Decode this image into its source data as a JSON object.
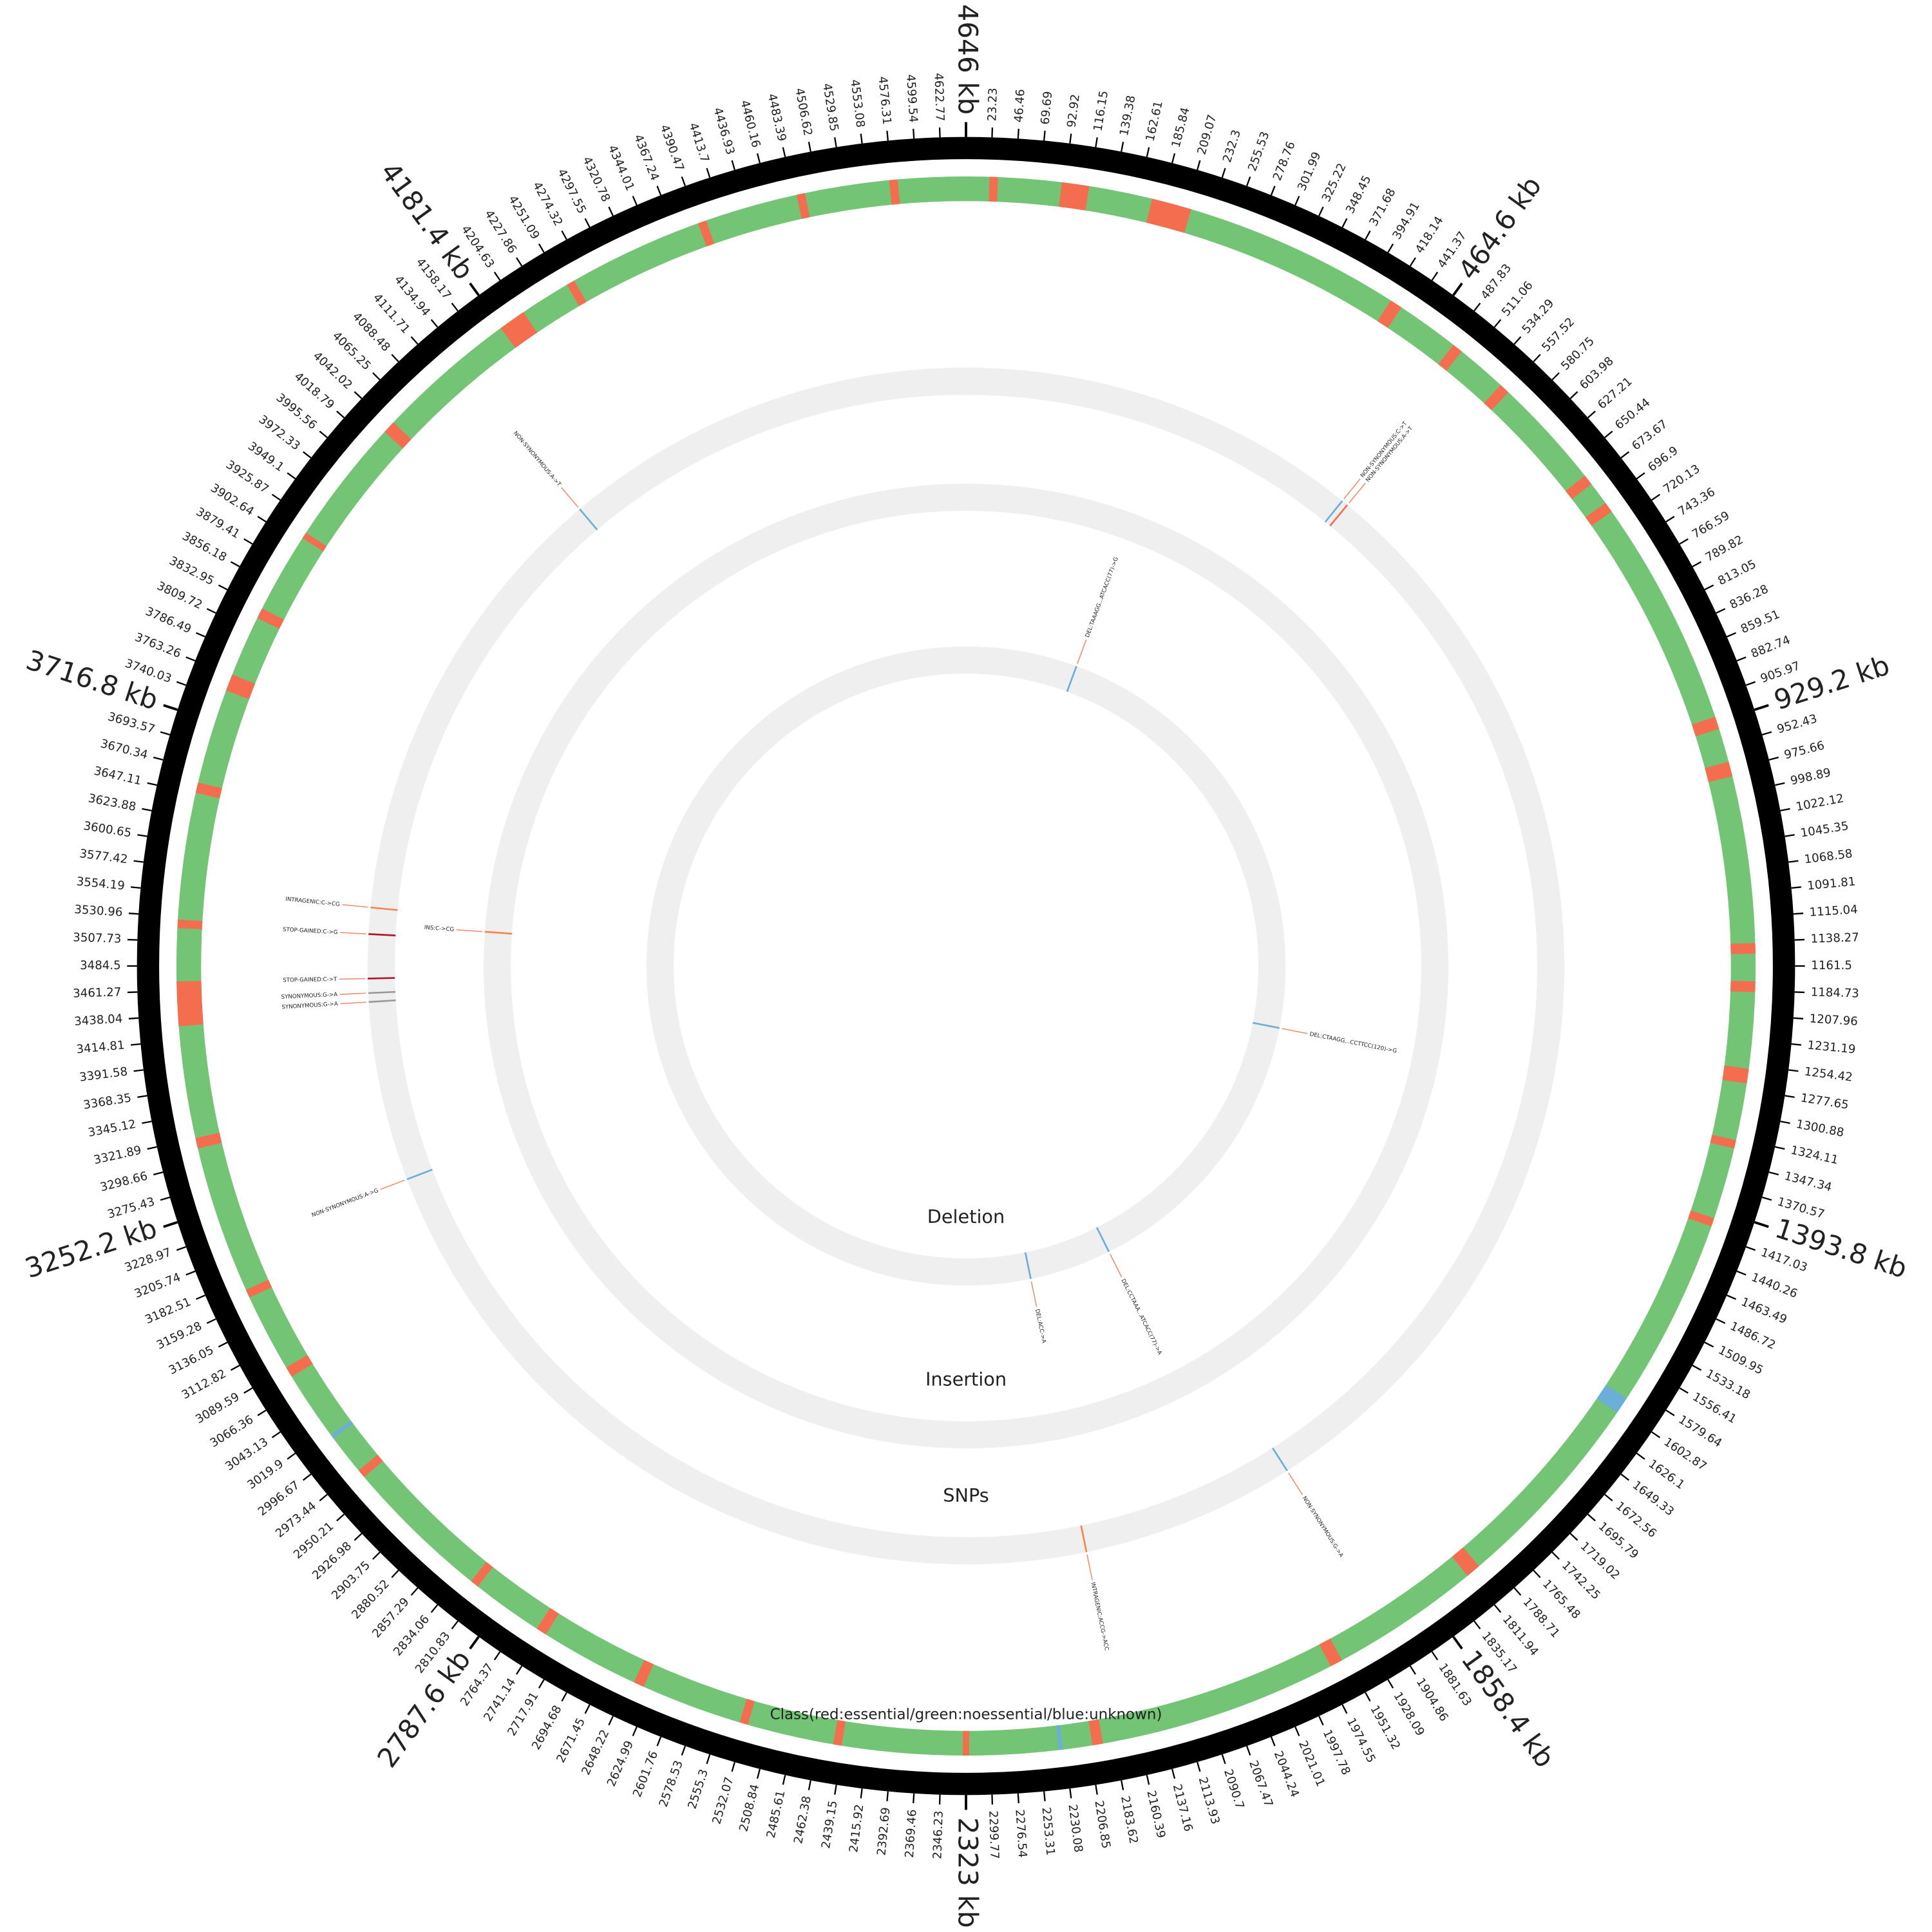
{
  "chart_data": {
    "type": "circos",
    "xlim": [
      0,
      4646
    ],
    "xticks": [
      23.23,
      46.46,
      69.69,
      92.92,
      116.15,
      139.38,
      162.61,
      185.84,
      209.07,
      232.3,
      255.53,
      278.76,
      301.99,
      325.22,
      348.45,
      371.68,
      394.91,
      418.14,
      441.37,
      {
        "value": 464.6,
        "label": "464.6 kb"
      },
      487.83,
      511.06,
      534.29,
      557.52,
      580.75,
      603.98,
      627.21,
      650.44,
      673.67,
      696.9,
      720.13,
      743.36,
      766.59,
      789.82,
      813.05,
      836.28,
      859.51,
      882.74,
      905.97,
      {
        "value": 929.2,
        "label": "929.2 kb"
      },
      952.43,
      975.66,
      998.89,
      1022.12,
      1045.35,
      1068.58,
      1091.81,
      1115.04,
      1138.27,
      1161.5,
      1184.73,
      1207.96,
      1231.19,
      1254.42,
      1277.65,
      1300.88,
      1324.11,
      1347.34,
      1370.57,
      {
        "value": 1393.8,
        "label": "1393.8 kb"
      },
      1417.03,
      1440.26,
      1463.49,
      1486.72,
      1509.95,
      1533.18,
      1556.41,
      1579.64,
      1602.87,
      1626.1,
      1649.33,
      1672.56,
      1695.79,
      1719.02,
      1742.25,
      1765.48,
      1788.71,
      1811.94,
      1835.17,
      {
        "value": 1858.4,
        "label": "1858.4 kb"
      },
      1881.63,
      1904.86,
      1928.09,
      1951.32,
      1974.55,
      1997.78,
      2021.01,
      2044.24,
      2067.47,
      2090.7,
      2113.93,
      2137.16,
      2160.39,
      2183.62,
      2206.85,
      2230.08,
      2253.31,
      2276.54,
      2299.77,
      {
        "value": 2323,
        "label": "2323 kb"
      },
      2346.23,
      2369.46,
      2392.69,
      2415.92,
      2439.15,
      2462.38,
      2485.61,
      2508.84,
      2532.07,
      2555.3,
      2578.53,
      2601.76,
      2624.99,
      2648.22,
      2671.45,
      2694.68,
      2717.91,
      2741.14,
      2764.37,
      {
        "value": 2787.6,
        "label": "2787.6 kb"
      },
      2810.83,
      2834.06,
      2857.29,
      2880.52,
      2903.75,
      2926.98,
      2950.21,
      2973.44,
      2996.67,
      3019.9,
      3043.13,
      3066.36,
      3089.59,
      3112.82,
      3136.05,
      3159.28,
      3182.51,
      3205.74,
      3228.97,
      {
        "value": 3252.2,
        "label": "3252.2 kb"
      },
      3275.43,
      3298.66,
      3321.89,
      3345.12,
      3368.35,
      3391.58,
      3414.81,
      3438.04,
      3461.27,
      3484.5,
      3507.73,
      3530.96,
      3554.19,
      3577.42,
      3600.65,
      3623.88,
      3647.11,
      3670.34,
      3693.57,
      {
        "value": 3716.8,
        "label": "3716.8 kb"
      },
      3740.03,
      3763.26,
      3786.49,
      3809.72,
      3832.95,
      3856.18,
      3879.41,
      3902.64,
      3925.87,
      3949.1,
      3972.33,
      3995.56,
      4018.79,
      4042.02,
      4065.25,
      4088.48,
      4111.71,
      4134.94,
      4158.17,
      {
        "value": 4181.4,
        "label": "4181.4 kb"
      },
      4204.63,
      4227.86,
      4251.09,
      4274.32,
      4297.55,
      4320.78,
      4344.01,
      4367.24,
      4390.47,
      4413.7,
      4436.93,
      4460.16,
      4483.39,
      4506.62,
      4529.85,
      4553.08,
      4576.31,
      4599.54,
      4622.77,
      {
        "value": 4646,
        "label": "4646 kb"
      }
    ],
    "gene_track": {
      "title": "Class(red:essential/green:noessential/blue:unknown)",
      "colors": {
        "noessential": "#74c476",
        "essential": "#f46d4e",
        "unknown": "#6baed6"
      },
      "essential": [
        [
          22,
          30
        ],
        [
          90,
          116
        ],
        [
          176,
          214
        ],
        [
          420,
          432
        ],
        [
          492,
          502
        ],
        [
          550,
          560
        ],
        [
          666,
          676
        ],
        [
          698,
          708
        ],
        [
          924,
          936
        ],
        [
          968,
          982
        ],
        [
          1140,
          1150
        ],
        [
          1176,
          1186
        ],
        [
          1258,
          1272
        ],
        [
          1326,
          1334
        ],
        [
          1402,
          1410
        ],
        [
          1800,
          1814
        ],
        [
          1956,
          1968
        ],
        [
          2194,
          2204
        ],
        [
          2320,
          2326
        ],
        [
          2440,
          2448
        ],
        [
          2530,
          2538
        ],
        [
          2634,
          2644
        ],
        [
          2738,
          2748
        ],
        [
          2816,
          2824
        ],
        [
          2964,
          2972
        ],
        [
          3080,
          3090
        ],
        [
          3164,
          3172
        ],
        [
          3312,
          3322
        ],
        [
          3428,
          3470
        ],
        [
          3520,
          3528
        ],
        [
          3648,
          3658
        ],
        [
          3748,
          3764
        ],
        [
          3822,
          3832
        ],
        [
          3908,
          3914
        ],
        [
          4034,
          4046
        ],
        [
          4180,
          4206
        ],
        [
          4254,
          4262
        ],
        [
          4390,
          4398
        ],
        [
          4486,
          4494
        ],
        [
          4574,
          4582
        ]
      ],
      "unknown": [
        [
          1590,
          1606
        ],
        [
          3010,
          3014
        ],
        [
          2232,
          2236
        ]
      ]
    },
    "tracks": [
      {
        "name": "SNPs",
        "variants": [
          {
            "position": 4127,
            "label": "NON-SYNONYMOUS:A->T",
            "color": "#6baed6"
          },
          {
            "position": 503,
            "label": "NON-SYNONYMOUS:C->T",
            "color": "#6baed6"
          },
          {
            "position": 511,
            "label": "NON-SYNONYMOUS:A->T",
            "color": "#f46d4e"
          },
          {
            "position": 3557,
            "label": "INTRAGENIC:C->CG",
            "color": "#f4874b"
          },
          {
            "position": 3524,
            "label": "STOP-GAINED:C->G",
            "color": "#b2182b"
          },
          {
            "position": 3469,
            "label": "STOP-GAINED:C->T",
            "color": "#b2182b"
          },
          {
            "position": 3451,
            "label": "SYNONYMOUS:G->A",
            "color": "#999999"
          },
          {
            "position": 3440,
            "label": "SYNONYMOUS:G->A",
            "color": "#999999"
          },
          {
            "position": 3215,
            "label": "NON-SYNONYMOUS:A->G",
            "color": "#6baed6"
          },
          {
            "position": 1904,
            "label": "NON-SYNONYMOUS:G->A",
            "color": "#6baed6"
          },
          {
            "position": 2173,
            "label": "INTRAGENIC:ACCG->ACC",
            "color": "#f4874b"
          }
        ]
      },
      {
        "name": "Insertion",
        "variants": [
          {
            "position": 3537,
            "label": "INS:C->CG",
            "color": "#f4874b"
          }
        ]
      },
      {
        "name": "Deletion",
        "variants": [
          {
            "position": 261,
            "label": "DEL:TAAAGG...ATCACC(77)->G",
            "color": "#6baed6"
          },
          {
            "position": 1306,
            "label": "DEL:CTAAGG...CCTTCC(120)->G",
            "color": "#6baed6"
          },
          {
            "position": 1980,
            "label": "DEL:CCTAAA...ATCACC(77)->A",
            "color": "#6baed6"
          },
          {
            "position": 2172,
            "label": "DEL:ACC->A",
            "color": "#6baed6"
          }
        ]
      }
    ]
  }
}
